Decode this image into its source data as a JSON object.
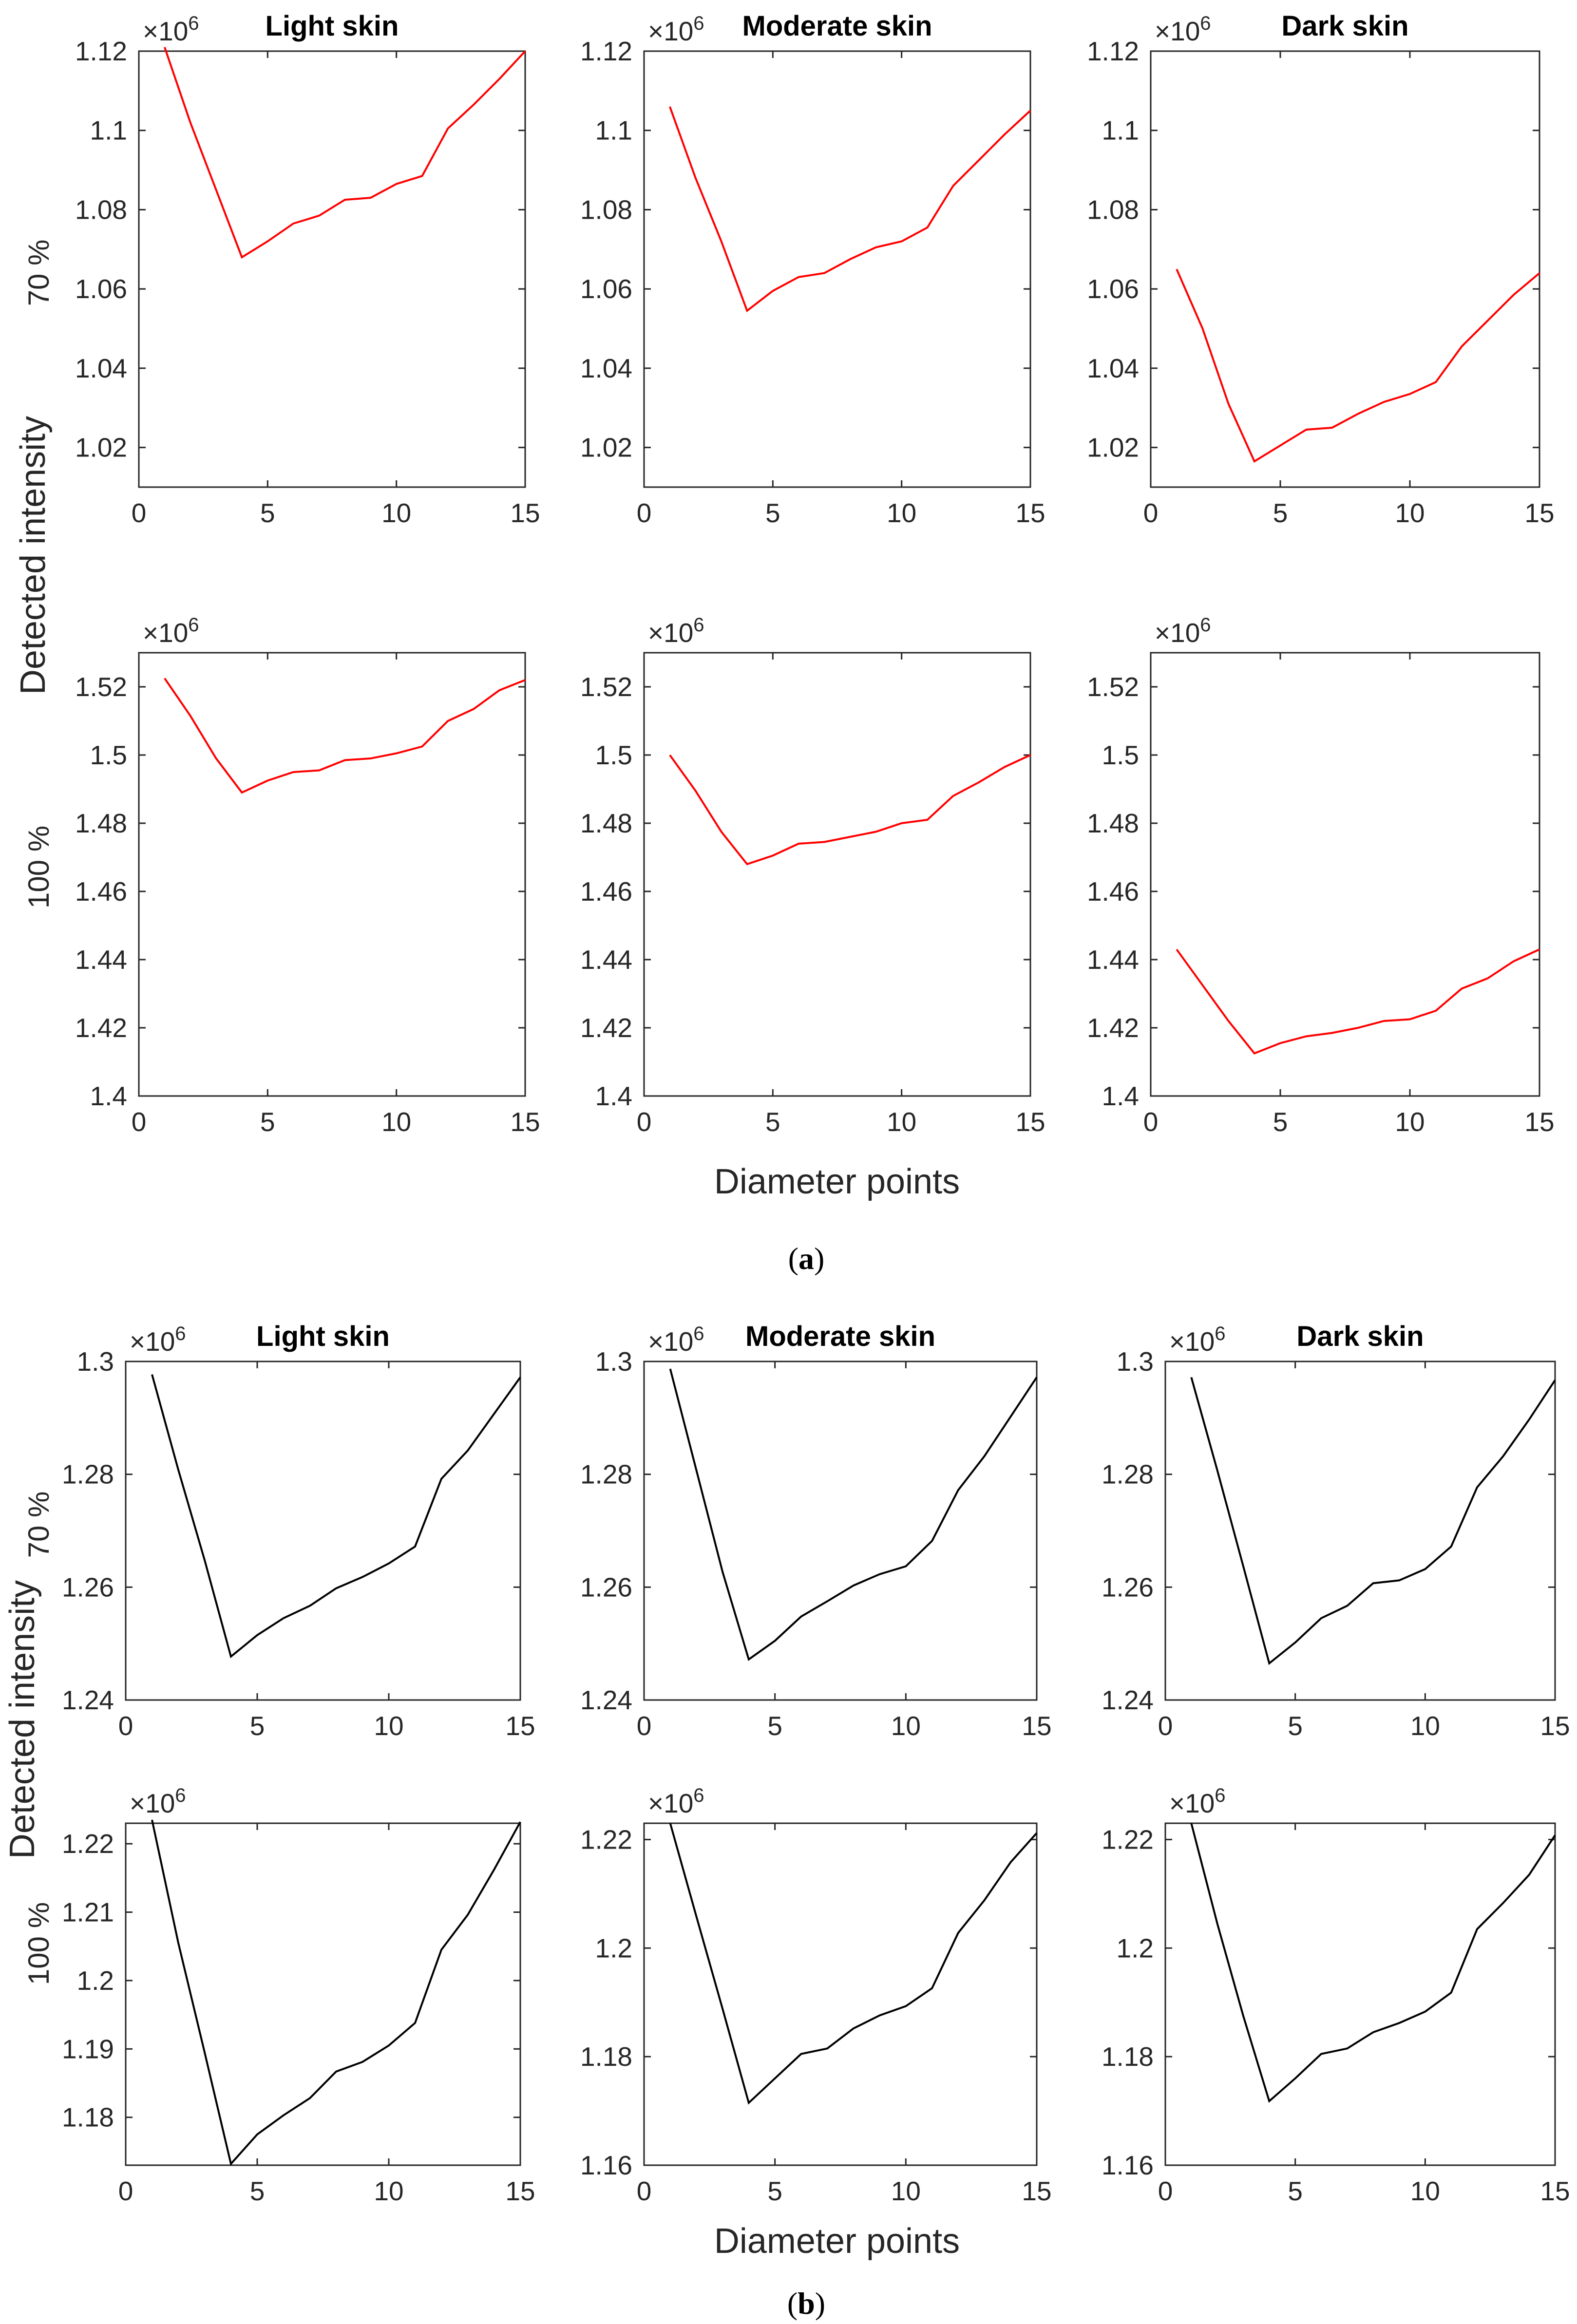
{
  "figure": {
    "captions": [
      {
        "open": "(",
        "letter": "a",
        "close": ")"
      },
      {
        "open": "(",
        "letter": "b",
        "close": ")"
      }
    ],
    "ylabel": "Detected intensity",
    "xlabel": "Diameter points",
    "row_labels": [
      "70 %",
      "100 %"
    ],
    "exponent_base": "×10",
    "exponent_power": "6",
    "colors": {
      "group_a": "#ff0000",
      "group_b": "#000000",
      "axis": "#262626"
    }
  },
  "chart_data": [
    {
      "type": "line",
      "group": "a",
      "row": "70 %",
      "title": "Light skin",
      "xlim": [
        0,
        15
      ],
      "ylim": [
        1.01,
        1.12
      ],
      "xticks": [
        0,
        5,
        10,
        15
      ],
      "yticks": [
        1.02,
        1.04,
        1.06,
        1.08,
        1.1,
        1.12
      ],
      "ytick_labels": [
        "1.02",
        "1.04",
        "1.06",
        "1.08",
        "1.1",
        "1.12"
      ],
      "scale": "×10^6",
      "color": "#ff0000",
      "x": [
        1,
        2,
        3,
        4,
        5,
        6,
        7,
        8,
        9,
        10,
        11,
        12,
        13,
        14,
        15
      ],
      "y": [
        1.121,
        1.102,
        1.085,
        1.068,
        1.072,
        1.0765,
        1.0785,
        1.0825,
        1.083,
        1.0865,
        1.0885,
        1.1005,
        1.1065,
        1.113,
        1.12
      ]
    },
    {
      "type": "line",
      "group": "a",
      "row": "70 %",
      "title": "Moderate skin",
      "xlim": [
        0,
        15
      ],
      "ylim": [
        1.01,
        1.12
      ],
      "xticks": [
        0,
        5,
        10,
        15
      ],
      "yticks": [
        1.02,
        1.04,
        1.06,
        1.08,
        1.1,
        1.12
      ],
      "ytick_labels": [
        "1.02",
        "1.04",
        "1.06",
        "1.08",
        "1.1",
        "1.12"
      ],
      "scale": "×10^6",
      "color": "#ff0000",
      "x": [
        1,
        2,
        3,
        4,
        5,
        6,
        7,
        8,
        9,
        10,
        11,
        12,
        13,
        14,
        15
      ],
      "y": [
        1.106,
        1.088,
        1.072,
        1.0545,
        1.0595,
        1.063,
        1.064,
        1.0675,
        1.0705,
        1.072,
        1.0755,
        1.086,
        1.0925,
        1.099,
        1.105
      ]
    },
    {
      "type": "line",
      "group": "a",
      "row": "70 %",
      "title": "Dark skin",
      "xlim": [
        0,
        15
      ],
      "ylim": [
        1.01,
        1.12
      ],
      "xticks": [
        0,
        5,
        10,
        15
      ],
      "yticks": [
        1.02,
        1.04,
        1.06,
        1.08,
        1.1,
        1.12
      ],
      "ytick_labels": [
        "1.02",
        "1.04",
        "1.06",
        "1.08",
        "1.1",
        "1.12"
      ],
      "scale": "×10^6",
      "color": "#ff0000",
      "x": [
        1,
        2,
        3,
        4,
        5,
        6,
        7,
        8,
        9,
        10,
        11,
        12,
        13,
        14,
        15
      ],
      "y": [
        1.065,
        1.05,
        1.031,
        1.0165,
        1.0205,
        1.0245,
        1.025,
        1.0285,
        1.0315,
        1.0335,
        1.0365,
        1.0455,
        1.052,
        1.0585,
        1.064
      ]
    },
    {
      "type": "line",
      "group": "a",
      "row": "100 %",
      "title": "",
      "xlim": [
        0,
        15
      ],
      "ylim": [
        1.4,
        1.53
      ],
      "xticks": [
        0,
        5,
        10,
        15
      ],
      "yticks": [
        1.4,
        1.42,
        1.44,
        1.46,
        1.48,
        1.5,
        1.52
      ],
      "ytick_labels": [
        "1.4",
        "1.42",
        "1.44",
        "1.46",
        "1.48",
        "1.5",
        "1.52"
      ],
      "scale": "×10^6",
      "color": "#ff0000",
      "x": [
        1,
        2,
        3,
        4,
        5,
        6,
        7,
        8,
        9,
        10,
        11,
        12,
        13,
        14,
        15
      ],
      "y": [
        1.5225,
        1.5115,
        1.499,
        1.489,
        1.4925,
        1.495,
        1.4955,
        1.4985,
        1.499,
        1.5005,
        1.5025,
        1.51,
        1.5135,
        1.519,
        1.522
      ]
    },
    {
      "type": "line",
      "group": "a",
      "row": "100 %",
      "title": "",
      "xlim": [
        0,
        15
      ],
      "ylim": [
        1.4,
        1.53
      ],
      "xticks": [
        0,
        5,
        10,
        15
      ],
      "yticks": [
        1.4,
        1.42,
        1.44,
        1.46,
        1.48,
        1.5,
        1.52
      ],
      "ytick_labels": [
        "1.4",
        "1.42",
        "1.44",
        "1.46",
        "1.48",
        "1.5",
        "1.52"
      ],
      "scale": "×10^6",
      "color": "#ff0000",
      "x": [
        1,
        2,
        3,
        4,
        5,
        6,
        7,
        8,
        9,
        10,
        11,
        12,
        13,
        14,
        15
      ],
      "y": [
        1.5,
        1.4895,
        1.4775,
        1.468,
        1.4705,
        1.474,
        1.4745,
        1.476,
        1.4775,
        1.48,
        1.481,
        1.488,
        1.492,
        1.4965,
        1.5
      ]
    },
    {
      "type": "line",
      "group": "a",
      "row": "100 %",
      "title": "",
      "xlim": [
        0,
        15
      ],
      "ylim": [
        1.4,
        1.53
      ],
      "xticks": [
        0,
        5,
        10,
        15
      ],
      "yticks": [
        1.4,
        1.42,
        1.44,
        1.46,
        1.48,
        1.5,
        1.52
      ],
      "ytick_labels": [
        "1.4",
        "1.42",
        "1.44",
        "1.46",
        "1.48",
        "1.5",
        "1.52"
      ],
      "scale": "×10^6",
      "color": "#ff0000",
      "x": [
        1,
        2,
        3,
        4,
        5,
        6,
        7,
        8,
        9,
        10,
        11,
        12,
        13,
        14,
        15
      ],
      "y": [
        1.443,
        1.4325,
        1.422,
        1.4125,
        1.4155,
        1.4175,
        1.4185,
        1.42,
        1.422,
        1.4225,
        1.425,
        1.4315,
        1.4345,
        1.4395,
        1.443
      ]
    },
    {
      "type": "line",
      "group": "b",
      "row": "70 %",
      "title": "Light skin",
      "xlim": [
        0,
        15
      ],
      "ylim": [
        1.24,
        1.3
      ],
      "xticks": [
        0,
        5,
        10,
        15
      ],
      "yticks": [
        1.24,
        1.26,
        1.28,
        1.3
      ],
      "ytick_labels": [
        "1.24",
        "1.26",
        "1.28",
        "1.3"
      ],
      "scale": "×10^6",
      "color": "#000000",
      "x": [
        1,
        2,
        3,
        4,
        5,
        6,
        7,
        8,
        9,
        10,
        11,
        12,
        13,
        14,
        15
      ],
      "y": [
        1.2977,
        1.2808,
        1.2648,
        1.2477,
        1.2515,
        1.2545,
        1.2567,
        1.2598,
        1.2618,
        1.2642,
        1.2672,
        1.2792,
        1.2842,
        1.2907,
        1.2972
      ]
    },
    {
      "type": "line",
      "group": "b",
      "row": "70 %",
      "title": "Moderate skin",
      "xlim": [
        0,
        15
      ],
      "ylim": [
        1.24,
        1.3
      ],
      "xticks": [
        0,
        5,
        10,
        15
      ],
      "yticks": [
        1.24,
        1.26,
        1.28,
        1.3
      ],
      "ytick_labels": [
        "1.24",
        "1.26",
        "1.28",
        "1.3"
      ],
      "scale": "×10^6",
      "color": "#000000",
      "x": [
        1,
        2,
        3,
        4,
        5,
        6,
        7,
        8,
        9,
        10,
        11,
        12,
        13,
        14,
        15
      ],
      "y": [
        1.2987,
        1.2807,
        1.2627,
        1.2472,
        1.2505,
        1.2548,
        1.2575,
        1.2603,
        1.2623,
        1.2637,
        1.2682,
        1.2772,
        1.2832,
        1.2902,
        1.2972
      ]
    },
    {
      "type": "line",
      "group": "b",
      "row": "70 %",
      "title": "Dark skin",
      "xlim": [
        0,
        15
      ],
      "ylim": [
        1.24,
        1.3
      ],
      "xticks": [
        0,
        5,
        10,
        15
      ],
      "yticks": [
        1.24,
        1.26,
        1.28,
        1.3
      ],
      "ytick_labels": [
        "1.24",
        "1.26",
        "1.28",
        "1.3"
      ],
      "scale": "×10^6",
      "color": "#000000",
      "x": [
        1,
        2,
        3,
        4,
        5,
        6,
        7,
        8,
        9,
        10,
        11,
        12,
        13,
        14,
        15
      ],
      "y": [
        1.2972,
        1.2807,
        1.2637,
        1.2465,
        1.2502,
        1.2545,
        1.2567,
        1.2607,
        1.2612,
        1.2632,
        1.2672,
        1.2777,
        1.2832,
        1.2897,
        1.2967
      ]
    },
    {
      "type": "line",
      "group": "b",
      "row": "100 %",
      "title": "",
      "xlim": [
        0,
        15
      ],
      "ylim": [
        1.173,
        1.223
      ],
      "xticks": [
        0,
        5,
        10,
        15
      ],
      "yticks": [
        1.18,
        1.19,
        1.2,
        1.21,
        1.22
      ],
      "ytick_labels": [
        "1.18",
        "1.19",
        "1.2",
        "1.21",
        "1.22"
      ],
      "scale": "×10^6",
      "color": "#000000",
      "x": [
        1,
        2,
        3,
        4,
        5,
        6,
        7,
        8,
        9,
        10,
        11,
        12,
        13,
        14,
        15
      ],
      "y": [
        1.2235,
        1.2055,
        1.1895,
        1.1732,
        1.1775,
        1.1803,
        1.1828,
        1.1867,
        1.1881,
        1.1905,
        1.1938,
        1.2045,
        1.2096,
        1.2162,
        1.2232
      ]
    },
    {
      "type": "line",
      "group": "b",
      "row": "100 %",
      "title": "",
      "xlim": [
        0,
        15
      ],
      "ylim": [
        1.16,
        1.223
      ],
      "xticks": [
        0,
        5,
        10,
        15
      ],
      "yticks": [
        1.16,
        1.18,
        1.2,
        1.22
      ],
      "ytick_labels": [
        "1.16",
        "1.18",
        "1.2",
        "1.22"
      ],
      "scale": "×10^6",
      "color": "#000000",
      "x": [
        1,
        2,
        3,
        4,
        5,
        6,
        7,
        8,
        9,
        10,
        11,
        12,
        13,
        14,
        15
      ],
      "y": [
        1.223,
        1.2058,
        1.1888,
        1.1715,
        1.176,
        1.1805,
        1.1815,
        1.1852,
        1.1876,
        1.1893,
        1.1926,
        1.2028,
        1.2088,
        1.2158,
        1.2212
      ]
    },
    {
      "type": "line",
      "group": "b",
      "row": "100 %",
      "title": "",
      "xlim": [
        0,
        15
      ],
      "ylim": [
        1.16,
        1.223
      ],
      "xticks": [
        0,
        5,
        10,
        15
      ],
      "yticks": [
        1.16,
        1.18,
        1.2,
        1.22
      ],
      "ytick_labels": [
        "1.16",
        "1.18",
        "1.2",
        "1.22"
      ],
      "scale": "×10^6",
      "color": "#000000",
      "x": [
        1,
        2,
        3,
        4,
        5,
        6,
        7,
        8,
        9,
        10,
        11,
        12,
        13,
        14,
        15
      ],
      "y": [
        1.223,
        1.2045,
        1.1875,
        1.1718,
        1.176,
        1.1805,
        1.1815,
        1.1845,
        1.1862,
        1.1883,
        1.1918,
        1.2035,
        1.2083,
        1.2135,
        1.2208
      ]
    }
  ]
}
